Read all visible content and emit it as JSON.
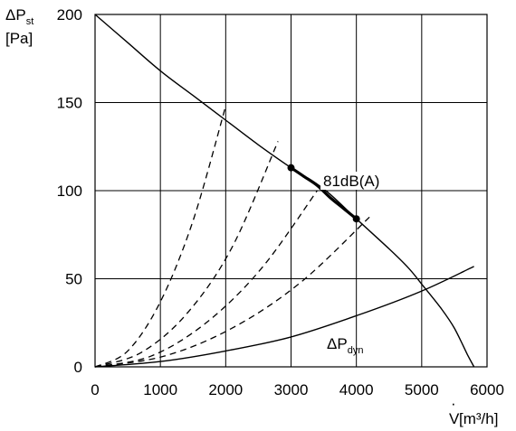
{
  "chart_data": {
    "type": "line",
    "x_ticks": [
      0,
      1000,
      2000,
      3000,
      4000,
      5000,
      6000
    ],
    "y_ticks": [
      0,
      50,
      100,
      150,
      200
    ],
    "x_tick_labels": [
      "0",
      "1000",
      "2000",
      "3000",
      "4000",
      "5000",
      "6000"
    ],
    "y_tick_labels": [
      "0",
      "50",
      "100",
      "150",
      "200"
    ],
    "xlim": [
      0,
      6000
    ],
    "ylim": [
      0,
      200
    ],
    "grid": true,
    "ylabel": {
      "prefix": "ΔP",
      "subscript": "st",
      "unit": "[Pa]"
    },
    "xlabel": {
      "base": "V",
      "dot": "·",
      "unit": " [m³/h]"
    },
    "series": [
      {
        "kind": "fan-curve",
        "style": "solid",
        "points": [
          [
            0,
            200
          ],
          [
            500,
            184
          ],
          [
            1000,
            168
          ],
          [
            1500,
            154
          ],
          [
            2000,
            140
          ],
          [
            2500,
            126
          ],
          [
            3000,
            113
          ],
          [
            3500,
            101
          ],
          [
            4000,
            84
          ],
          [
            4500,
            67
          ],
          [
            4800,
            56
          ],
          [
            5000,
            47
          ],
          [
            5300,
            33
          ],
          [
            5500,
            22
          ],
          [
            5700,
            7
          ],
          [
            5800,
            0
          ]
        ]
      },
      {
        "kind": "operating-range",
        "style": "bold",
        "points": [
          [
            3000,
            113
          ],
          [
            3200,
            108
          ],
          [
            3400,
            103
          ],
          [
            3600,
            96
          ],
          [
            3800,
            90
          ],
          [
            4000,
            84
          ]
        ],
        "endpoints": [
          [
            3000,
            113
          ],
          [
            4000,
            84
          ]
        ]
      },
      {
        "kind": "system-curve",
        "style": "dashed",
        "points": [
          [
            0,
            0
          ],
          [
            500,
            9
          ],
          [
            1000,
            37
          ],
          [
            1500,
            83
          ],
          [
            2000,
            148
          ]
        ]
      },
      {
        "kind": "system-curve",
        "style": "dashed",
        "points": [
          [
            0,
            0
          ],
          [
            700,
            8
          ],
          [
            1400,
            30
          ],
          [
            2100,
            68
          ],
          [
            2800,
            128
          ]
        ]
      },
      {
        "kind": "system-curve",
        "style": "dashed",
        "points": [
          [
            0,
            0
          ],
          [
            850,
            6
          ],
          [
            1700,
            25
          ],
          [
            2550,
            56
          ],
          [
            3400,
            100
          ]
        ]
      },
      {
        "kind": "system-curve",
        "style": "dashed",
        "points": [
          [
            0,
            0
          ],
          [
            1050,
            6
          ],
          [
            2100,
            22
          ],
          [
            3150,
            48
          ],
          [
            4200,
            85
          ]
        ]
      },
      {
        "kind": "dynamic-pressure",
        "style": "solid",
        "points": [
          [
            0,
            0
          ],
          [
            1000,
            3
          ],
          [
            2000,
            9
          ],
          [
            3000,
            17
          ],
          [
            4000,
            29
          ],
          [
            5000,
            43
          ],
          [
            5800,
            57
          ]
        ]
      }
    ],
    "annotations": {
      "sound_level": "81dB(A)",
      "dynamic_pressure": {
        "prefix": "ΔP",
        "subscript": "dyn"
      }
    }
  }
}
